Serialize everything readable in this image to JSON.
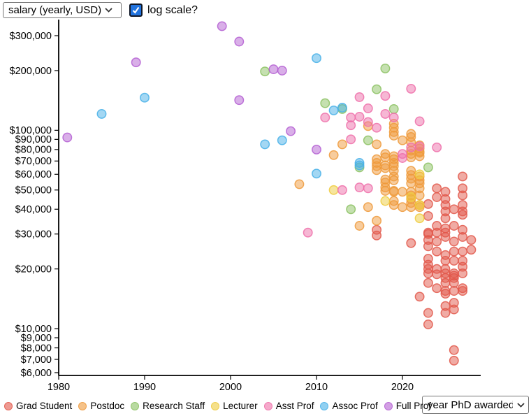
{
  "controls": {
    "y_axis_select": {
      "value": "salary (yearly, USD)"
    },
    "log_scale_checkbox": {
      "label": "log scale?",
      "checked": true
    },
    "x_axis_select": {
      "value": "year PhD awarded"
    }
  },
  "chart_data": {
    "type": "scatter",
    "title": "",
    "xlabel": "year PhD awarded",
    "ylabel": "salary (yearly, USD)",
    "y_scale": "log",
    "grid": false,
    "legend_position": "bottom",
    "xlim": [
      1980,
      2029
    ],
    "ylim": [
      5800,
      355000
    ],
    "x_ticks": [
      {
        "value": 1980,
        "label": "1980"
      },
      {
        "value": 1990,
        "label": "1990"
      },
      {
        "value": 2000,
        "label": "2000"
      },
      {
        "value": 2010,
        "label": "2010"
      },
      {
        "value": 2020,
        "label": "2020"
      }
    ],
    "y_ticks": [
      {
        "value": 300000,
        "label": "$300,000"
      },
      {
        "value": 200000,
        "label": "$200,000"
      },
      {
        "value": 100000,
        "label": "$100,000"
      },
      {
        "value": 90000,
        "label": "$90,000"
      },
      {
        "value": 80000,
        "label": "$80,000"
      },
      {
        "value": 70000,
        "label": "$70,000"
      },
      {
        "value": 60000,
        "label": "$60,000"
      },
      {
        "value": 50000,
        "label": "$50,000"
      },
      {
        "value": 40000,
        "label": "$40,000"
      },
      {
        "value": 30000,
        "label": "$30,000"
      },
      {
        "value": 20000,
        "label": "$20,000"
      },
      {
        "value": 10000,
        "label": "$10,000"
      },
      {
        "value": 9000,
        "label": "$9,000"
      },
      {
        "value": 8000,
        "label": "$8,000"
      },
      {
        "value": 7000,
        "label": "$7,000"
      },
      {
        "value": 6000,
        "label": "$6,000"
      }
    ],
    "series": [
      {
        "name": "Grad Student",
        "color": "#e2574a",
        "points": [
          [
            2017,
            31500
          ],
          [
            2017,
            29500
          ],
          [
            2021,
            27000
          ],
          [
            2022,
            14500
          ],
          [
            2023,
            42500
          ],
          [
            2023,
            37000
          ],
          [
            2023,
            30500
          ],
          [
            2023,
            30000
          ],
          [
            2023,
            28000
          ],
          [
            2023,
            26000
          ],
          [
            2023,
            22500
          ],
          [
            2023,
            21000
          ],
          [
            2023,
            20000
          ],
          [
            2023,
            19000
          ],
          [
            2023,
            17000
          ],
          [
            2023,
            12000
          ],
          [
            2023,
            10500
          ],
          [
            2024,
            51000
          ],
          [
            2024,
            46000
          ],
          [
            2024,
            33000
          ],
          [
            2024,
            30500
          ],
          [
            2024,
            27500
          ],
          [
            2024,
            24500
          ],
          [
            2024,
            20000
          ],
          [
            2024,
            18800
          ],
          [
            2024,
            16000
          ],
          [
            2025,
            49000
          ],
          [
            2025,
            45000
          ],
          [
            2025,
            42000
          ],
          [
            2025,
            39000
          ],
          [
            2025,
            36000
          ],
          [
            2025,
            32000
          ],
          [
            2025,
            30500
          ],
          [
            2025,
            29000
          ],
          [
            2025,
            23500
          ],
          [
            2025,
            22000
          ],
          [
            2025,
            20000
          ],
          [
            2025,
            19000
          ],
          [
            2025,
            18000
          ],
          [
            2025,
            17000
          ],
          [
            2025,
            15500
          ],
          [
            2025,
            15000
          ],
          [
            2025,
            13000
          ],
          [
            2025,
            12000
          ],
          [
            2026,
            40000
          ],
          [
            2026,
            33000
          ],
          [
            2026,
            27500
          ],
          [
            2026,
            24500
          ],
          [
            2026,
            22000
          ],
          [
            2026,
            19000
          ],
          [
            2026,
            18500
          ],
          [
            2026,
            18000
          ],
          [
            2026,
            17000
          ],
          [
            2026,
            15500
          ],
          [
            2026,
            13500
          ],
          [
            2026,
            12500
          ],
          [
            2026,
            7800
          ],
          [
            2026,
            6900
          ],
          [
            2027,
            58500
          ],
          [
            2027,
            51000
          ],
          [
            2027,
            47000
          ],
          [
            2027,
            42000
          ],
          [
            2027,
            39000
          ],
          [
            2027,
            37500
          ],
          [
            2027,
            31500
          ],
          [
            2027,
            29000
          ],
          [
            2027,
            24500
          ],
          [
            2027,
            22000
          ],
          [
            2027,
            20500
          ],
          [
            2027,
            19000
          ],
          [
            2027,
            16000
          ],
          [
            2027,
            15500
          ],
          [
            2028,
            28000
          ],
          [
            2028,
            25000
          ]
        ]
      },
      {
        "name": "Postdoc",
        "color": "#ef9a3b",
        "points": [
          [
            2008,
            53500
          ],
          [
            2012,
            75000
          ],
          [
            2013,
            85000
          ],
          [
            2015,
            33000
          ],
          [
            2016,
            105000
          ],
          [
            2016,
            41000
          ],
          [
            2017,
            85000
          ],
          [
            2017,
            71500
          ],
          [
            2017,
            68500
          ],
          [
            2017,
            66000
          ],
          [
            2017,
            63000
          ],
          [
            2017,
            35000
          ],
          [
            2018,
            76000
          ],
          [
            2018,
            73000
          ],
          [
            2018,
            66500
          ],
          [
            2018,
            64500
          ],
          [
            2018,
            56500
          ],
          [
            2018,
            54500
          ],
          [
            2018,
            51500
          ],
          [
            2018,
            49500
          ],
          [
            2019,
            108000
          ],
          [
            2019,
            103000
          ],
          [
            2019,
            98000
          ],
          [
            2019,
            94000
          ],
          [
            2019,
            74000
          ],
          [
            2019,
            71500
          ],
          [
            2019,
            68500
          ],
          [
            2019,
            66000
          ],
          [
            2019,
            62500
          ],
          [
            2019,
            58500
          ],
          [
            2019,
            56000
          ],
          [
            2019,
            49500
          ],
          [
            2019,
            49000
          ],
          [
            2019,
            44000
          ],
          [
            2019,
            42000
          ],
          [
            2020,
            89000
          ],
          [
            2020,
            49000
          ],
          [
            2020,
            41000
          ],
          [
            2021,
            96000
          ],
          [
            2021,
            92500
          ],
          [
            2021,
            87000
          ],
          [
            2021,
            79000
          ],
          [
            2021,
            76000
          ],
          [
            2021,
            73000
          ],
          [
            2021,
            62500
          ],
          [
            2021,
            59500
          ],
          [
            2021,
            57000
          ],
          [
            2021,
            54000
          ],
          [
            2021,
            49000
          ],
          [
            2021,
            47000
          ],
          [
            2021,
            45000
          ],
          [
            2021,
            43000
          ],
          [
            2021,
            41000
          ],
          [
            2022,
            84000
          ],
          [
            2022,
            81000
          ],
          [
            2022,
            78000
          ],
          [
            2022,
            77000
          ],
          [
            2022,
            74000
          ],
          [
            2022,
            58500
          ],
          [
            2022,
            56000
          ],
          [
            2022,
            54000
          ],
          [
            2022,
            51000
          ],
          [
            2022,
            47000
          ],
          [
            2022,
            42000
          ],
          [
            2022,
            41000
          ]
        ]
      },
      {
        "name": "Research Staff",
        "color": "#8bc162",
        "points": [
          [
            2004,
            198000
          ],
          [
            2011,
            137000
          ],
          [
            2013,
            128000
          ],
          [
            2014,
            40000
          ],
          [
            2015,
            65000
          ],
          [
            2016,
            89000
          ],
          [
            2017,
            161000
          ],
          [
            2018,
            205000
          ],
          [
            2019,
            128000
          ],
          [
            2023,
            65000
          ]
        ]
      },
      {
        "name": "Lecturer",
        "color": "#eecb3d",
        "points": [
          [
            2012,
            50000
          ],
          [
            2018,
            44000
          ],
          [
            2021,
            46000
          ],
          [
            2022,
            60000
          ],
          [
            2022,
            42000
          ],
          [
            2022,
            36000
          ]
        ]
      },
      {
        "name": "Asst Prof",
        "color": "#ee6fa9",
        "points": [
          [
            2009,
            30500
          ],
          [
            2011,
            116000
          ],
          [
            2013,
            50000
          ],
          [
            2014,
            116000
          ],
          [
            2014,
            106000
          ],
          [
            2014,
            90000
          ],
          [
            2015,
            147000
          ],
          [
            2015,
            117000
          ],
          [
            2015,
            51500
          ],
          [
            2016,
            129000
          ],
          [
            2016,
            110000
          ],
          [
            2016,
            51000
          ],
          [
            2017,
            103000
          ],
          [
            2018,
            149000
          ],
          [
            2018,
            121000
          ],
          [
            2019,
            116000
          ],
          [
            2020,
            76000
          ],
          [
            2020,
            72500
          ],
          [
            2021,
            162000
          ],
          [
            2021,
            82000
          ],
          [
            2022,
            111000
          ],
          [
            2022,
            83000
          ],
          [
            2024,
            82000
          ]
        ]
      },
      {
        "name": "Assoc Prof",
        "color": "#47b0e8",
        "points": [
          [
            1985,
            121000
          ],
          [
            1990,
            146000
          ],
          [
            2004,
            85000
          ],
          [
            2006,
            89000
          ],
          [
            2010,
            231000
          ],
          [
            2010,
            60500
          ],
          [
            2012,
            126000
          ],
          [
            2013,
            130000
          ],
          [
            2015,
            68500
          ],
          [
            2015,
            66500
          ]
        ]
      },
      {
        "name": "Full Prof",
        "color": "#b45fd2",
        "points": [
          [
            1981,
            92000
          ],
          [
            1989,
            220000
          ],
          [
            1999,
            335000
          ],
          [
            2001,
            280000
          ],
          [
            2001,
            142000
          ],
          [
            2005,
            203000
          ],
          [
            2006,
            200000
          ],
          [
            2007,
            99000
          ],
          [
            2010,
            80000
          ]
        ]
      }
    ]
  }
}
